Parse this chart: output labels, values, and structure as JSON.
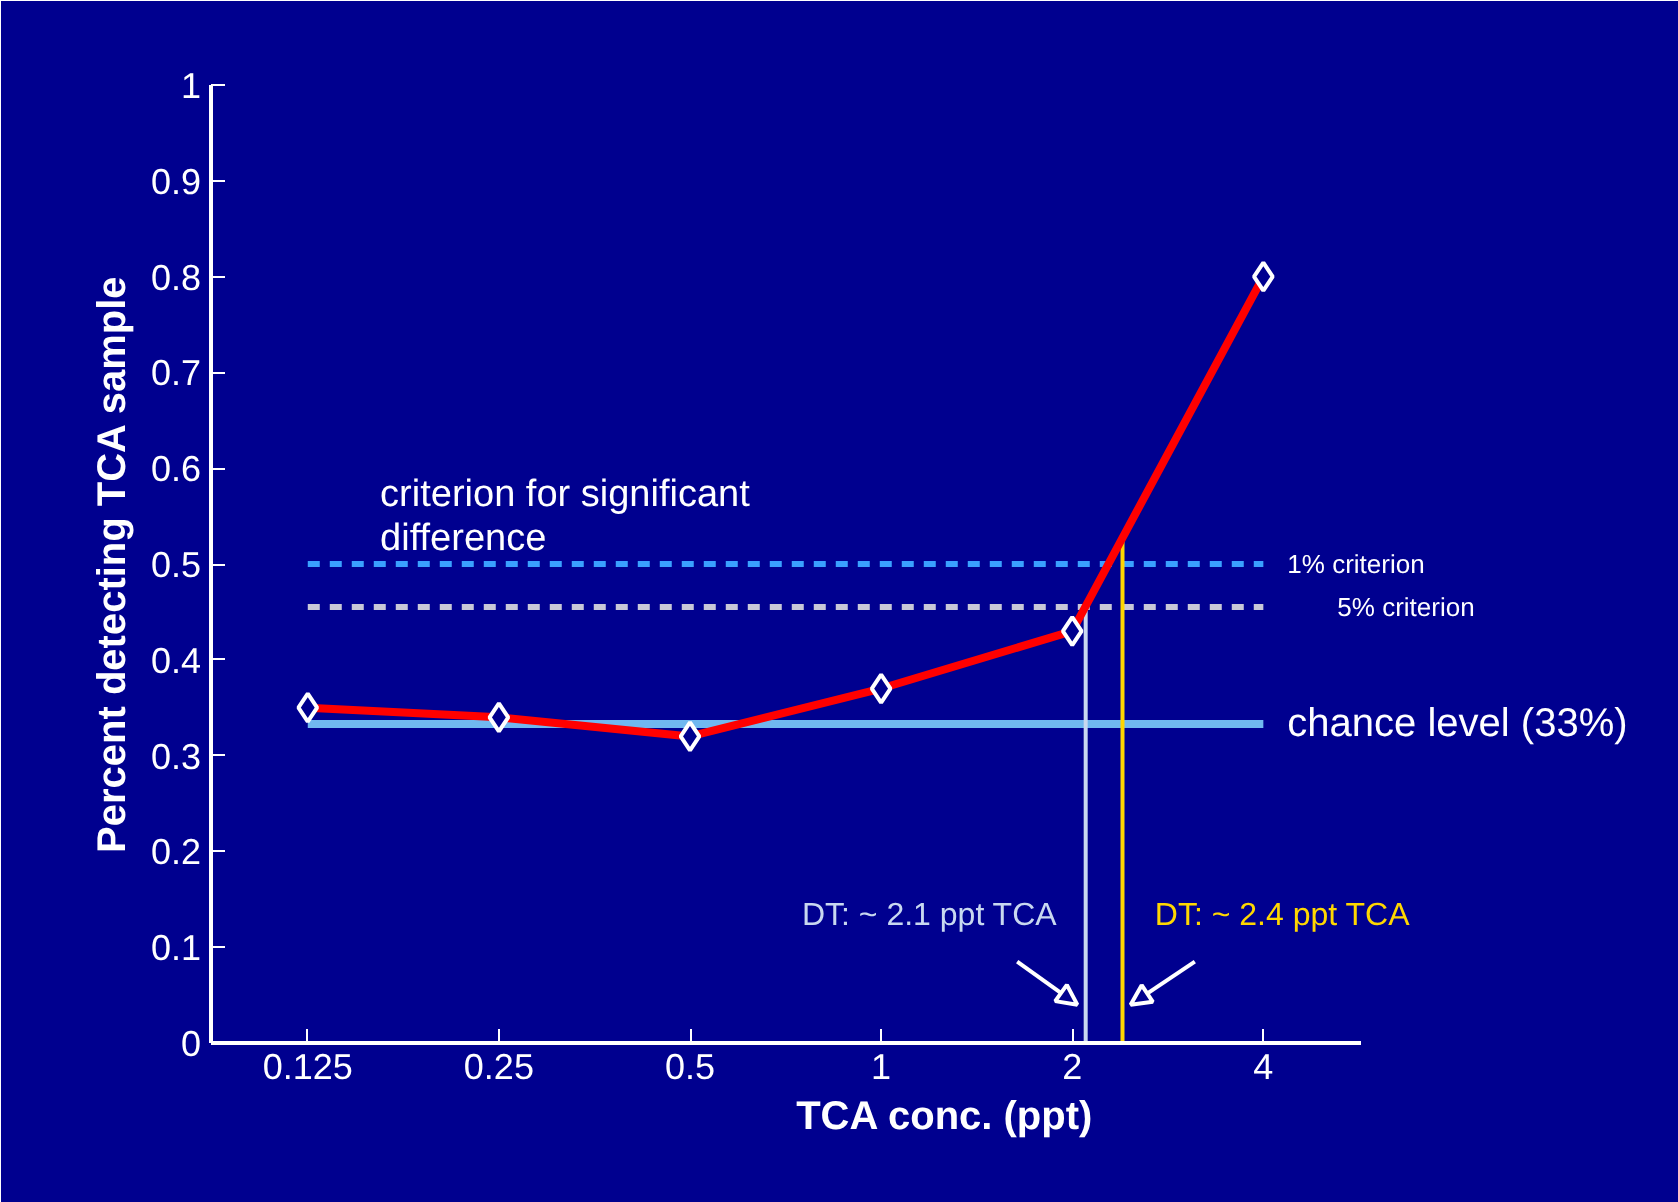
{
  "chart_data": {
    "type": "line",
    "xlabel": "TCA conc. (ppt)",
    "ylabel": "Percent detecting TCA sample",
    "x": [
      0.125,
      0.25,
      0.5,
      1,
      2,
      4
    ],
    "series": [
      {
        "color": "#ff0000",
        "values": [
          0.35,
          0.34,
          0.32,
          0.37,
          0.43,
          0.8
        ]
      }
    ],
    "marker": "diamond",
    "line_style": "solid",
    "log": "x",
    "xlim": [
      0.088,
      5.7
    ],
    "ylim": [
      0,
      1
    ],
    "xticks": [
      0.125,
      0.25,
      0.5,
      1,
      2,
      4
    ],
    "yticks": [
      0,
      0.1,
      0.2,
      0.3,
      0.4,
      0.5,
      0.6,
      0.7,
      0.8,
      0.9,
      1
    ],
    "grid": false,
    "ref_lines": [
      {
        "axis": "y",
        "value": 0.5,
        "label": "1% criterion",
        "color": "#3aa0ff",
        "line_style": "dashed"
      },
      {
        "axis": "y",
        "value": 0.455,
        "label": "5% criterion",
        "color": "#c8c8d8",
        "line_style": "dashed"
      },
      {
        "axis": "y",
        "value": 0.333,
        "label": "chance level (33%)",
        "color": "#70b8f0",
        "line_style": "solid"
      },
      {
        "axis": "x",
        "value": 2.1,
        "label": "DT: ~ 2.1 ppt TCA",
        "color": "#c8d8f0",
        "line_style": "solid"
      },
      {
        "axis": "x",
        "value": 2.4,
        "label": "DT: ~ 2.4 ppt TCA",
        "color": "#ffd700",
        "line_style": "solid"
      }
    ],
    "annotations": [
      "criterion for significant difference"
    ]
  }
}
